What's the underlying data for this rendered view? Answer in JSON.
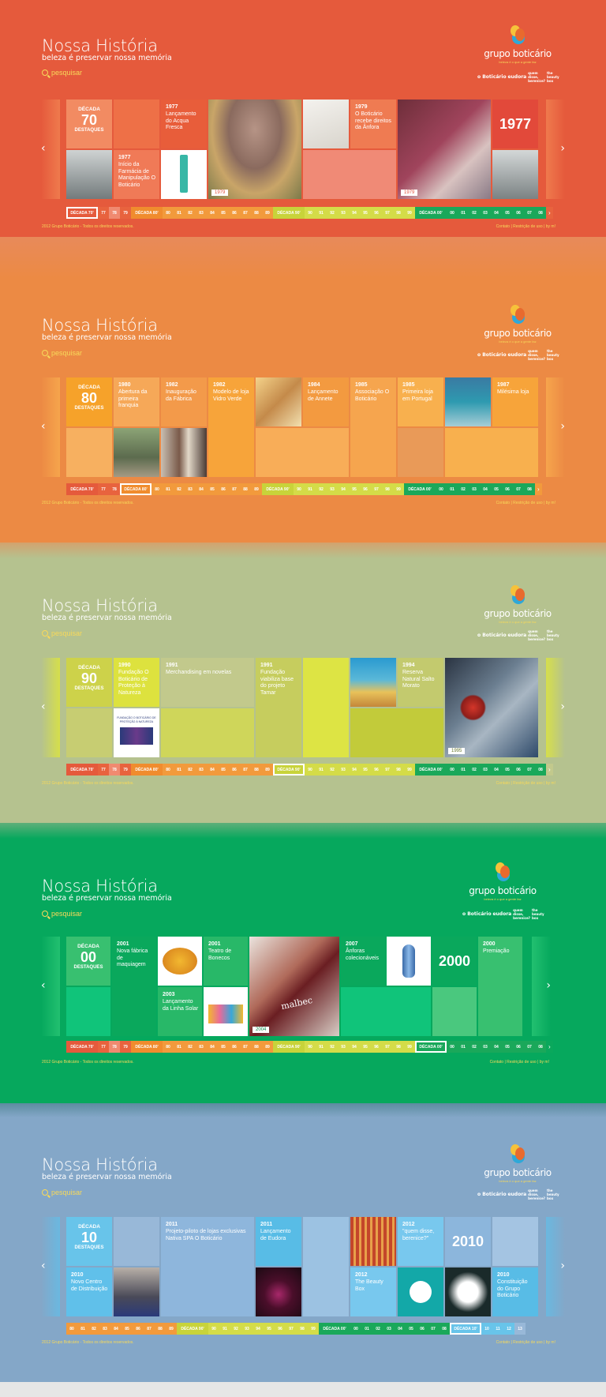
{
  "header": {
    "title": "Nossa História",
    "subtitle": "beleza é preservar nossa memória",
    "search_label": "pesquisar",
    "logo_name": "grupo boticário",
    "logo_tagline": "beleza é o que a gente faz",
    "brands": [
      "o Boticário",
      "eudora",
      "quem disse, berenice?",
      "the beauty box"
    ]
  },
  "footer": {
    "copyright": "2012 Grupo Boticário - Todos os direitos reservados.",
    "links": [
      "Contato",
      "Restrição de uso",
      "by m!"
    ]
  },
  "colors": {
    "panel_70": "#e55a3c",
    "panel_80": "#ec8a44",
    "panel_90": "#b5c28f",
    "panel_00": "#06a85d",
    "panel_10": "#84a7c8",
    "accent_yellow": "#f7d95a"
  },
  "timeline": {
    "decade_70": "DÉCADA 70'",
    "decade_80": "DÉCADA 80'",
    "decade_90": "DÉCADA 90'",
    "decade_00": "DÉCADA 00'",
    "decade_10": "DÉCADA 10'",
    "y70": [
      "77",
      "78",
      "79"
    ],
    "y80": [
      "80",
      "81",
      "82",
      "83",
      "84",
      "85",
      "86",
      "87",
      "88",
      "89"
    ],
    "y90": [
      "90",
      "91",
      "92",
      "93",
      "94",
      "95",
      "96",
      "97",
      "98",
      "99"
    ],
    "y00": [
      "00",
      "01",
      "02",
      "03",
      "04",
      "05",
      "06",
      "07",
      "08"
    ],
    "y10": [
      "10",
      "11",
      "12",
      "13"
    ]
  },
  "panels": {
    "p70": {
      "decade_label": "DÉCADA",
      "decade_num": "70",
      "decade_sub": "DESTAQUES",
      "items": [
        {
          "year": "1977",
          "text": "Lançamento do Acqua Fresca"
        },
        {
          "year": "1977",
          "text": "Início da Farmácia de Manipulação O Boticário"
        },
        {
          "year": "1979",
          "text": "O Boticário recebe direitos da Ânfora"
        }
      ],
      "badges": [
        "1979",
        "1979"
      ],
      "big_year": "1977"
    },
    "p80": {
      "decade_label": "DÉCADA",
      "decade_num": "80",
      "decade_sub": "DESTAQUES",
      "items": [
        {
          "year": "1980",
          "text": "Abertura da primeira franquia"
        },
        {
          "year": "1982",
          "text": "Inauguração da Fábrica"
        },
        {
          "year": "1982",
          "text": "Modelo de loja Vidro Verde"
        },
        {
          "year": "1984",
          "text": "Lançamento de Annete"
        },
        {
          "year": "1985",
          "text": "Associação O Boticário"
        },
        {
          "year": "1985",
          "text": "Primeira loja em Portugal"
        },
        {
          "year": "1987",
          "text": "Milésima loja"
        }
      ]
    },
    "p90": {
      "decade_label": "DÉCADA",
      "decade_num": "90",
      "decade_sub": "DESTAQUES",
      "items": [
        {
          "year": "1990",
          "text": "Fundação O Boticário de Proteção à Natureza"
        },
        {
          "year": "1991",
          "text": "Merchandising em novelas"
        },
        {
          "year": "1991",
          "text": "Fundação viabiliza base do projeto Tamar"
        },
        {
          "year": "1994",
          "text": "Reserva Natural Salto Morato"
        }
      ],
      "badges": [
        "1995"
      ],
      "photo_caption": "FUNDAÇÃO O BOTICÁRIO DE PROTEÇÃO À NATUREZA"
    },
    "p00": {
      "decade_label": "DÉCADA",
      "decade_num": "00",
      "decade_sub": "DESTAQUES",
      "items": [
        {
          "year": "2001",
          "text": "Nova fábrica de maquiagem"
        },
        {
          "year": "2001",
          "text": "Teatro de Bonecos"
        },
        {
          "year": "2003",
          "text": "Lançamento da Linha Solar"
        },
        {
          "year": "2007",
          "text": "Ânforas colecionáveis"
        },
        {
          "year": "2000",
          "text": "Premiação"
        }
      ],
      "badges": [
        "2004"
      ],
      "big_year": "2000",
      "photo_text": "malbec"
    },
    "p10": {
      "decade_label": "DÉCADA",
      "decade_num": "10",
      "decade_sub": "DESTAQUES",
      "items": [
        {
          "year": "2010",
          "text": "Novo Centro de Distribuição"
        },
        {
          "year": "2011",
          "text": "Projeto-piloto de lojas exclusivas Nativa SPA O Boticário"
        },
        {
          "year": "2011",
          "text": "Lançamento de Eudora"
        },
        {
          "year": "2012",
          "text": "\"quem disse, berenice?\""
        },
        {
          "year": "2012",
          "text": "The Beauty Box"
        },
        {
          "year": "2010",
          "text": "Constituição do Grupo Boticário"
        }
      ],
      "big_year": "2010"
    }
  }
}
